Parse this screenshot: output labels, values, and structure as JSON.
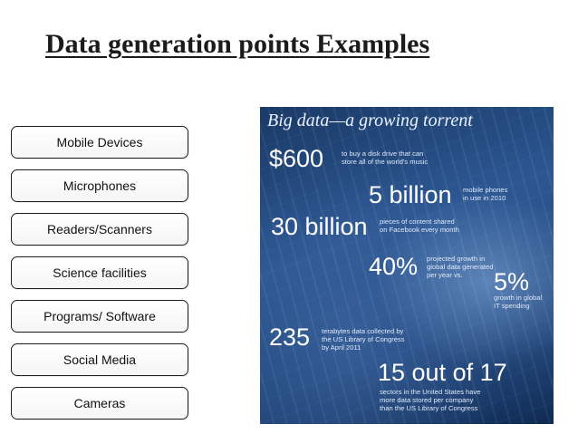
{
  "slide": {
    "title": "Data generation points Examples"
  },
  "sources": [
    "Mobile Devices",
    "Microphones",
    "Readers/Scanners",
    "Science facilities",
    "Programs/ Software",
    "Social Media",
    "Cameras"
  ],
  "infographic": {
    "headline": "Big data—a growing torrent",
    "stats": [
      {
        "figure": "$600",
        "caption": [
          "to buy a disk drive that can",
          "store all of the world's music"
        ]
      },
      {
        "figure": "5 billion",
        "caption": [
          "mobile phones",
          "in use in 2010"
        ]
      },
      {
        "figure": "30 billion",
        "caption": [
          "pieces of content shared",
          "on Facebook every month"
        ]
      },
      {
        "figure": "40%",
        "caption": [
          "projected growth in",
          "global data generated",
          "per year vs."
        ]
      },
      {
        "figure": "5%",
        "caption": [
          "growth in global",
          "IT spending"
        ]
      },
      {
        "figure": "235",
        "caption": [
          "terabytes data collected by",
          "the US Library of Congress",
          "by April 2011"
        ]
      },
      {
        "figure": "15 out of 17",
        "caption": [
          "sectors in the United States have",
          "more data stored per company",
          "than the US Library of Congress"
        ]
      }
    ]
  }
}
